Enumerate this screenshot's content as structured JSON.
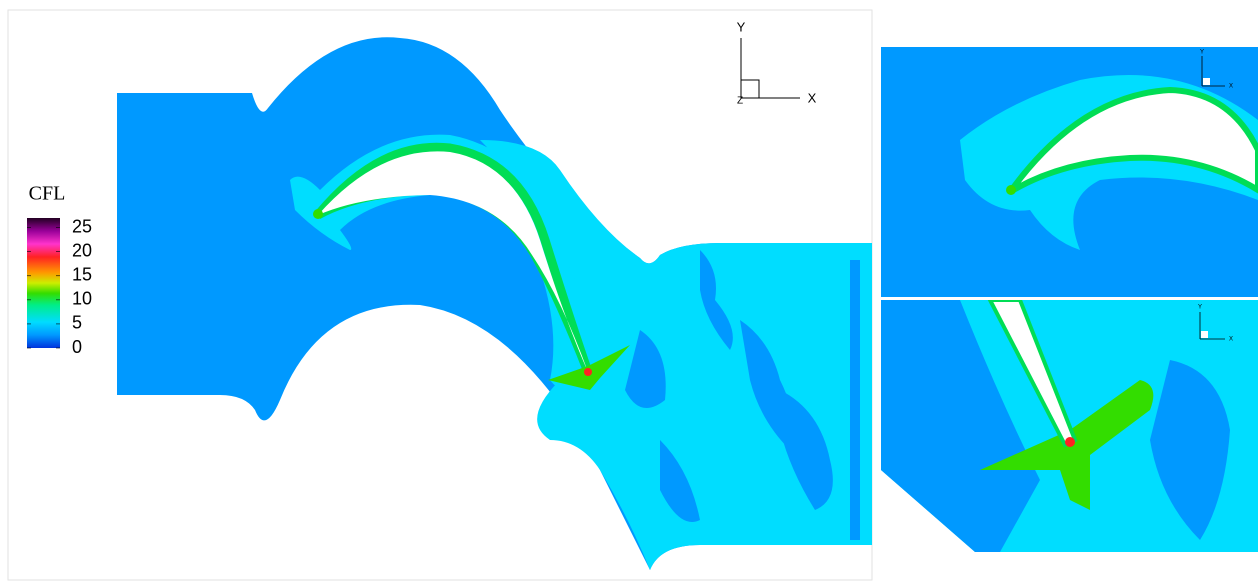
{
  "chart_data": {
    "type": "contour",
    "colorbar": {
      "title": "CFL",
      "lim": [
        0,
        27
      ],
      "ticks": [
        0,
        5,
        10,
        15,
        20,
        25
      ]
    },
    "axis_labels": {
      "x": "X",
      "y": "Y",
      "z": "Z"
    }
  }
}
